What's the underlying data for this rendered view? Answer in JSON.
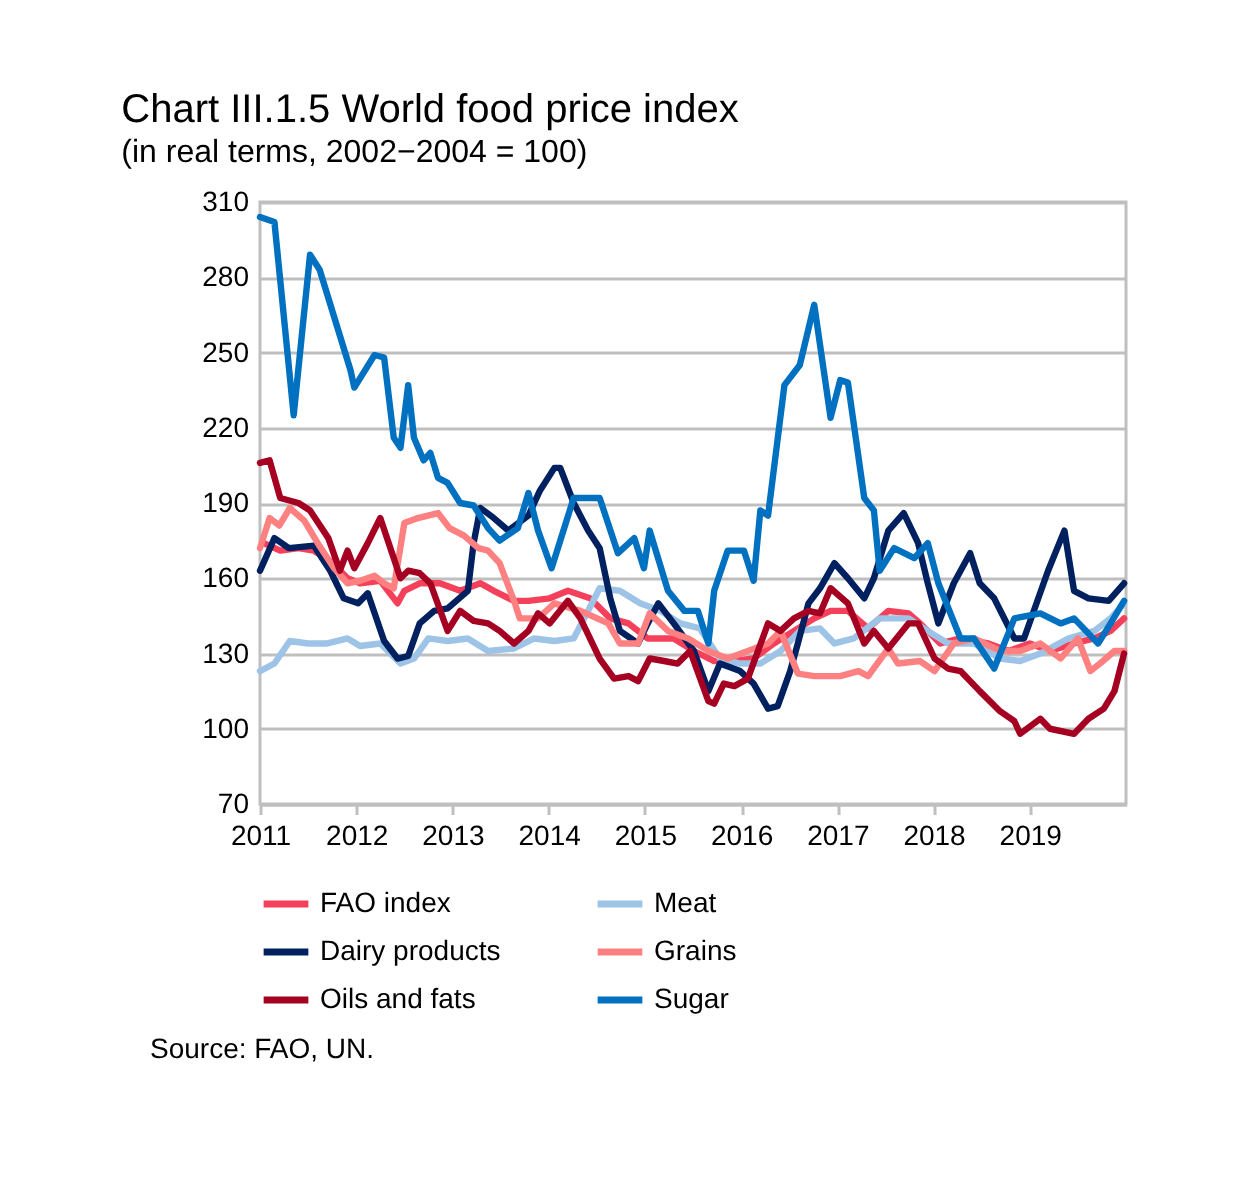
{
  "chart_data": {
    "type": "line",
    "title": "Chart III.1.5 World food price index",
    "subtitle": "(in real terms, 2002−2004 = 100)",
    "annotations": [
      "Source: FAO, UN."
    ],
    "xlim": [
      2011,
      2020
    ],
    "xticks": [
      2011,
      2012,
      2013,
      2014,
      2015,
      2016,
      2017,
      2018,
      2019
    ],
    "ylim": [
      70,
      310
    ],
    "yticks": [
      70,
      100,
      130,
      160,
      190,
      220,
      250,
      280,
      310
    ],
    "grid": "y",
    "legend": "bottom",
    "line_style": "solid",
    "marker": "none",
    "series": [
      {
        "name": "FAO index",
        "color": "#f4405a",
        "x": [
          2011.04,
          2011.21,
          2011.4,
          2011.56,
          2011.73,
          2011.91,
          2012.04,
          2012.25,
          2012.43,
          2012.5,
          2012.66,
          2012.87,
          2013.08,
          2013.29,
          2013.43,
          2013.64,
          2013.79,
          2014.01,
          2014.2,
          2014.43,
          2014.64,
          2014.83,
          2015.03,
          2015.3,
          2015.51,
          2015.72,
          2015.93,
          2016.13,
          2016.34,
          2016.55,
          2016.76,
          2016.93,
          2017.11,
          2017.32,
          2017.53,
          2017.74,
          2017.86,
          2018.07,
          2018.28,
          2018.57,
          2018.78,
          2019.0,
          2019.21,
          2019.46,
          2019.67,
          2019.84,
          2019.98
        ],
        "values": [
          174,
          171,
          172,
          171,
          167,
          160,
          158,
          159,
          150,
          155,
          158,
          158,
          155,
          158,
          155,
          151,
          151,
          152,
          155,
          152,
          144,
          142,
          136,
          136,
          131,
          127,
          127,
          128,
          134,
          139,
          144,
          147,
          147,
          140,
          147,
          146,
          142,
          134,
          136,
          134,
          131,
          134,
          131,
          134,
          136,
          139,
          144
        ]
      },
      {
        "name": "Meat",
        "color": "#9dc3e6",
        "x": [
          2011.0,
          2011.15,
          2011.31,
          2011.5,
          2011.7,
          2011.91,
          2012.04,
          2012.25,
          2012.46,
          2012.6,
          2012.75,
          2012.95,
          2013.16,
          2013.37,
          2013.64,
          2013.85,
          2014.06,
          2014.26,
          2014.41,
          2014.53,
          2014.74,
          2014.95,
          2015.16,
          2015.37,
          2015.57,
          2015.78,
          2015.99,
          2016.2,
          2016.41,
          2016.61,
          2016.82,
          2016.97,
          2017.17,
          2017.44,
          2017.74,
          2017.94,
          2018.15,
          2018.42,
          2018.69,
          2018.9,
          2019.11,
          2019.4,
          2019.67,
          2019.84,
          2019.98
        ],
        "values": [
          123,
          126,
          135,
          134,
          134,
          136,
          133,
          134,
          126,
          128,
          136,
          135,
          136,
          131,
          132,
          136,
          135,
          136,
          147,
          156,
          155,
          150,
          147,
          142,
          140,
          128,
          126,
          126,
          131,
          139,
          140,
          134,
          136,
          144,
          144,
          139,
          134,
          134,
          128,
          127,
          130,
          136,
          139,
          144,
          150
        ]
      },
      {
        "name": "Dairy products",
        "color": "#002060",
        "x": [
          2011.0,
          2011.15,
          2011.3,
          2011.56,
          2011.73,
          2011.87,
          2012.02,
          2012.12,
          2012.29,
          2012.43,
          2012.54,
          2012.66,
          2012.81,
          2012.95,
          2013.16,
          2013.22,
          2013.29,
          2013.43,
          2013.58,
          2013.79,
          2013.91,
          2014.06,
          2014.12,
          2014.26,
          2014.41,
          2014.53,
          2014.64,
          2014.74,
          2014.93,
          2015.03,
          2015.14,
          2015.3,
          2015.51,
          2015.66,
          2015.78,
          2015.99,
          2016.13,
          2016.28,
          2016.38,
          2016.51,
          2016.59,
          2016.7,
          2016.82,
          2016.97,
          2017.11,
          2017.28,
          2017.38,
          2017.53,
          2017.69,
          2017.84,
          2017.94,
          2018.05,
          2018.21,
          2018.38,
          2018.48,
          2018.63,
          2018.84,
          2018.94,
          2019.19,
          2019.36,
          2019.46,
          2019.61,
          2019.82,
          2019.98
        ],
        "values": [
          163,
          176,
          172,
          173,
          163,
          152,
          150,
          154,
          135,
          128,
          129,
          142,
          147,
          148,
          155,
          174,
          188,
          184,
          179,
          185,
          195,
          204,
          204,
          190,
          179,
          172,
          152,
          139,
          134,
          142,
          150,
          142,
          131,
          115,
          126,
          123,
          118,
          108,
          109,
          123,
          134,
          150,
          156,
          166,
          160,
          152,
          160,
          179,
          186,
          174,
          158,
          142,
          158,
          170,
          158,
          152,
          136,
          136,
          163,
          179,
          155,
          152,
          151,
          158
        ]
      },
      {
        "name": "Grains",
        "color": "#ff8080",
        "x": [
          2011.0,
          2011.1,
          2011.2,
          2011.31,
          2011.46,
          2011.6,
          2011.77,
          2011.91,
          2012.04,
          2012.19,
          2012.29,
          2012.39,
          2012.5,
          2012.64,
          2012.85,
          2012.97,
          2013.12,
          2013.27,
          2013.37,
          2013.49,
          2013.64,
          2013.7,
          2013.89,
          2014.06,
          2014.33,
          2014.62,
          2014.74,
          2014.93,
          2015.05,
          2015.24,
          2015.45,
          2015.66,
          2015.86,
          2016.07,
          2016.28,
          2016.41,
          2016.59,
          2016.76,
          2016.93,
          2017.03,
          2017.22,
          2017.32,
          2017.53,
          2017.63,
          2017.86,
          2018.01,
          2018.21,
          2018.42,
          2018.69,
          2018.9,
          2019.11,
          2019.32,
          2019.5,
          2019.63,
          2019.73,
          2019.88,
          2019.98
        ],
        "values": [
          172,
          184,
          181,
          188,
          183,
          174,
          164,
          158,
          159,
          161,
          158,
          156,
          182,
          184,
          186,
          180,
          177,
          172,
          171,
          166,
          151,
          144,
          144,
          150,
          147,
          142,
          134,
          134,
          146,
          139,
          136,
          131,
          128,
          131,
          134,
          139,
          122,
          121,
          121,
          121,
          123,
          121,
          132,
          126,
          127,
          123,
          134,
          136,
          131,
          131,
          134,
          128,
          136,
          123,
          126,
          131,
          131
        ]
      },
      {
        "name": "Oils and fats",
        "color": "#a50021",
        "x": [
          2011.0,
          2011.1,
          2011.21,
          2011.4,
          2011.52,
          2011.71,
          2011.83,
          2011.91,
          2011.98,
          2012.12,
          2012.25,
          2012.46,
          2012.54,
          2012.66,
          2012.77,
          2012.95,
          2013.08,
          2013.22,
          2013.37,
          2013.49,
          2013.64,
          2013.79,
          2013.89,
          2014.01,
          2014.2,
          2014.33,
          2014.53,
          2014.68,
          2014.83,
          2014.93,
          2015.05,
          2015.2,
          2015.34,
          2015.47,
          2015.66,
          2015.72,
          2015.82,
          2015.93,
          2016.07,
          2016.28,
          2016.41,
          2016.55,
          2016.7,
          2016.82,
          2016.93,
          2017.11,
          2017.28,
          2017.38,
          2017.53,
          2017.74,
          2017.84,
          2018.01,
          2018.15,
          2018.28,
          2018.48,
          2018.69,
          2018.84,
          2018.9,
          2019.11,
          2019.21,
          2019.46,
          2019.61,
          2019.77,
          2019.88,
          2019.98
        ],
        "values": [
          206,
          207,
          192,
          190,
          187,
          176,
          163,
          171,
          164,
          174,
          184,
          160,
          163,
          162,
          158,
          139,
          147,
          143,
          142,
          139,
          134,
          139,
          146,
          142,
          151,
          144,
          128,
          120,
          121,
          119,
          128,
          127,
          126,
          131,
          111,
          110,
          118,
          117,
          120,
          142,
          139,
          144,
          147,
          146,
          156,
          150,
          134,
          139,
          132,
          142,
          142,
          128,
          124,
          123,
          115,
          107,
          103,
          98,
          104,
          100,
          98,
          104,
          108,
          115,
          130
        ]
      },
      {
        "name": "Sugar",
        "color": "#0070c0",
        "x": [
          2011.0,
          2011.15,
          2011.35,
          2011.52,
          2011.62,
          2011.94,
          2011.98,
          2012.19,
          2012.29,
          2012.39,
          2012.46,
          2012.54,
          2012.6,
          2012.7,
          2012.77,
          2012.85,
          2012.95,
          2013.08,
          2013.22,
          2013.37,
          2013.49,
          2013.68,
          2013.79,
          2013.89,
          2014.03,
          2014.26,
          2014.53,
          2014.72,
          2014.89,
          2014.99,
          2015.05,
          2015.24,
          2015.41,
          2015.55,
          2015.66,
          2015.72,
          2015.86,
          2016.03,
          2016.13,
          2016.2,
          2016.28,
          2016.45,
          2016.61,
          2016.76,
          2016.93,
          2017.03,
          2017.11,
          2017.28,
          2017.38,
          2017.44,
          2017.59,
          2017.8,
          2017.94,
          2018.05,
          2018.28,
          2018.42,
          2018.63,
          2018.84,
          2019.11,
          2019.32,
          2019.46,
          2019.71,
          2019.84,
          2019.98
        ],
        "values": [
          304,
          302,
          225,
          289,
          283,
          243,
          236,
          249,
          248,
          216,
          212,
          237,
          216,
          207,
          210,
          200,
          198,
          190,
          189,
          180,
          175,
          180,
          194,
          179,
          164,
          192,
          192,
          170,
          176,
          164,
          179,
          155,
          147,
          147,
          134,
          155,
          171,
          171,
          159,
          187,
          185,
          237,
          245,
          269,
          224,
          239,
          238,
          192,
          187,
          163,
          172,
          168,
          174,
          158,
          136,
          136,
          124,
          144,
          146,
          142,
          144,
          134,
          142,
          151
        ]
      }
    ]
  }
}
